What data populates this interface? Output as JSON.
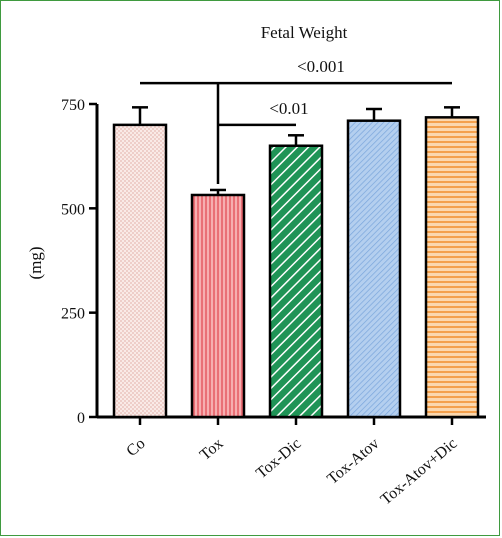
{
  "chart_data": {
    "type": "bar",
    "title": "Fetal Weight",
    "ylabel": "(mg)",
    "xlabel": "",
    "categories": [
      "Co",
      "Tox",
      "Tox-Dic",
      "Tox-Atov",
      "Tox-Atov+Dic"
    ],
    "values": [
      700,
      532,
      650,
      710,
      718
    ],
    "errors": [
      42,
      12,
      25,
      28,
      24
    ],
    "ylim": [
      0,
      750
    ],
    "yticks": [
      0,
      250,
      500,
      750
    ],
    "colors": [
      "#f4d9d4",
      "#f08b8f",
      "#2fa86a",
      "#9cc0e8",
      "#f6b26b"
    ],
    "hatches": [
      "cross-fine",
      "vertical",
      "diagonal",
      "diagonal-fine",
      "horizontal"
    ],
    "annotations": [
      {
        "text": "<0.001",
        "from": "Co",
        "to": "Tox-Atov+Dic",
        "level": 800
      },
      {
        "text": "<0.01",
        "from": "Tox",
        "to": "Tox-Dic",
        "level": 700
      }
    ],
    "grid": false
  }
}
